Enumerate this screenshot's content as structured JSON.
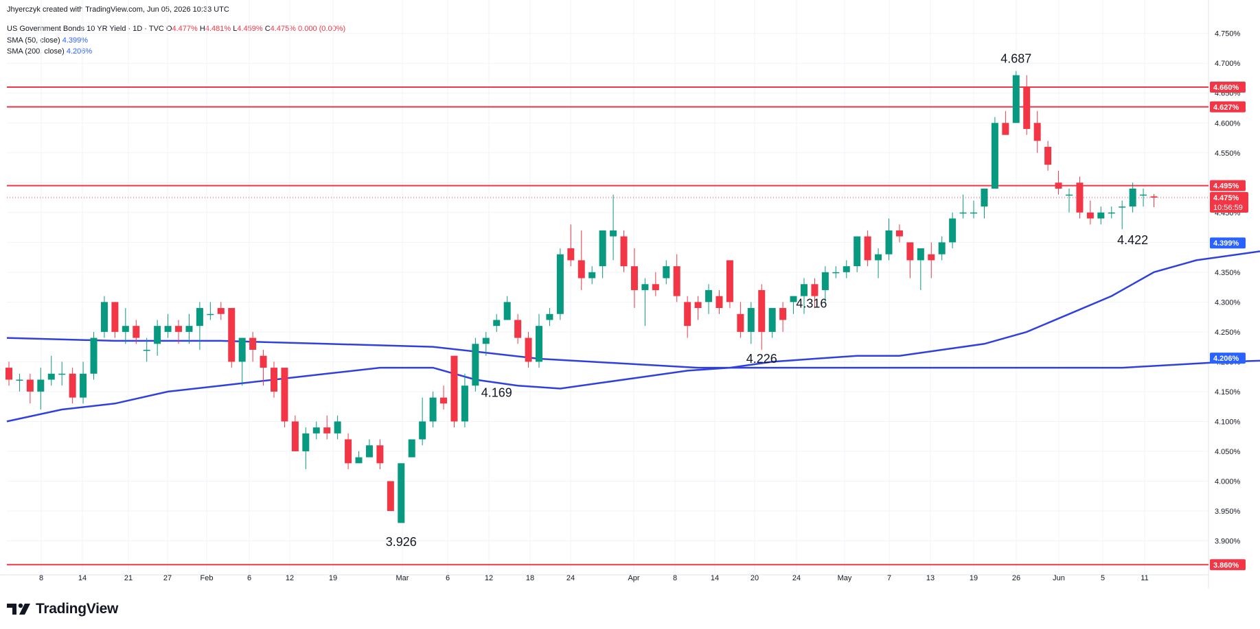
{
  "credit": "Jhyerczyk created with TradingView.com, Jun 05, 2026 10:33 UTC",
  "legend": {
    "symbol_text": "US Government Bonds 10 YR Yield · 1D · TVC",
    "o_label": "O",
    "o_value": "4.477%",
    "h_label": "H",
    "h_value": "4.481%",
    "l_label": "L",
    "l_value": "4.459%",
    "c_label": "C",
    "c_value": "4.475%",
    "change": "0.000 (0.00%)",
    "sma50_label": "SMA (50, close)",
    "sma50_value": "4.399%",
    "sma200_label": "SMA (200, close)",
    "sma200_value": "4.206%"
  },
  "branding": {
    "logo_text": "TradingView"
  },
  "colors": {
    "up": "#089981",
    "down": "#f23645",
    "sma": "#2f3fe0",
    "sma_badge": "#2962ff",
    "level": "#f23645",
    "grid": "#f0f3fa"
  },
  "chart_data": {
    "type": "candlestick",
    "yaxis": {
      "min": 3.85,
      "max": 4.76,
      "ticks": [
        "4.750%",
        "4.700%",
        "4.650%",
        "4.600%",
        "4.550%",
        "4.500%",
        "4.450%",
        "4.400%",
        "4.350%",
        "4.300%",
        "4.250%",
        "4.200%",
        "4.150%",
        "4.100%",
        "4.050%",
        "4.000%",
        "3.950%",
        "3.900%"
      ],
      "position": "right"
    },
    "xaxis": {
      "ticks": [
        "8",
        "14",
        "21",
        "27",
        "Feb",
        "6",
        "12",
        "19",
        "Mar",
        "6",
        "12",
        "18",
        "24",
        "Apr",
        "8",
        "14",
        "20",
        "24",
        "May",
        "7",
        "13",
        "19",
        "26",
        "Jun",
        "5",
        "11"
      ]
    },
    "grid": true,
    "levels": [
      {
        "value": 4.66,
        "label": "4.660%"
      },
      {
        "value": 4.627,
        "label": "4.627%"
      },
      {
        "value": 4.495,
        "label": "4.495%"
      },
      {
        "value": 3.86,
        "label": "3.860%"
      }
    ],
    "last_price": {
      "value": 4.475,
      "label": "4.475%",
      "countdown": "10:56:59"
    },
    "sma50": {
      "last": 4.399,
      "label": "4.399%",
      "points": [
        [
          0,
          4.1
        ],
        [
          5,
          4.12
        ],
        [
          10,
          4.13
        ],
        [
          15,
          4.15
        ],
        [
          20,
          4.16
        ],
        [
          25,
          4.17
        ],
        [
          30,
          4.18
        ],
        [
          35,
          4.19
        ],
        [
          40,
          4.19
        ],
        [
          44,
          4.17
        ],
        [
          48,
          4.16
        ],
        [
          52,
          4.155
        ],
        [
          56,
          4.165
        ],
        [
          60,
          4.175
        ],
        [
          64,
          4.185
        ],
        [
          68,
          4.19
        ],
        [
          72,
          4.2
        ],
        [
          76,
          4.205
        ],
        [
          80,
          4.21
        ],
        [
          84,
          4.21
        ],
        [
          88,
          4.22
        ],
        [
          92,
          4.23
        ],
        [
          96,
          4.25
        ],
        [
          100,
          4.28
        ],
        [
          104,
          4.31
        ],
        [
          108,
          4.35
        ],
        [
          112,
          4.37
        ],
        [
          116,
          4.38
        ],
        [
          120,
          4.39
        ],
        [
          123,
          4.399
        ]
      ]
    },
    "sma200": {
      "last": 4.206,
      "label": "4.206%",
      "points": [
        [
          0,
          4.24
        ],
        [
          10,
          4.235
        ],
        [
          20,
          4.235
        ],
        [
          30,
          4.23
        ],
        [
          40,
          4.225
        ],
        [
          45,
          4.215
        ],
        [
          50,
          4.205
        ],
        [
          55,
          4.2
        ],
        [
          60,
          4.195
        ],
        [
          65,
          4.19
        ],
        [
          70,
          4.19
        ],
        [
          80,
          4.19
        ],
        [
          90,
          4.19
        ],
        [
          100,
          4.19
        ],
        [
          105,
          4.19
        ],
        [
          110,
          4.195
        ],
        [
          115,
          4.2
        ],
        [
          120,
          4.203
        ],
        [
          123,
          4.206
        ]
      ]
    },
    "candles": [
      [
        4.19,
        4.17,
        4.2,
        4.16
      ],
      [
        4.17,
        4.17,
        4.18,
        4.15
      ],
      [
        4.17,
        4.15,
        4.18,
        4.13
      ],
      [
        4.15,
        4.17,
        4.19,
        4.12
      ],
      [
        4.17,
        4.18,
        4.21,
        4.16
      ],
      [
        4.18,
        4.18,
        4.2,
        4.16
      ],
      [
        4.18,
        4.14,
        4.19,
        4.13
      ],
      [
        4.14,
        4.18,
        4.2,
        4.13
      ],
      [
        4.18,
        4.24,
        4.25,
        4.17
      ],
      [
        4.25,
        4.3,
        4.31,
        4.24
      ],
      [
        4.3,
        4.25,
        4.3,
        4.24
      ],
      [
        4.25,
        4.26,
        4.29,
        4.23
      ],
      [
        4.26,
        4.24,
        4.27,
        4.23
      ],
      [
        4.22,
        4.22,
        4.24,
        4.2
      ],
      [
        4.23,
        4.26,
        4.27,
        4.21
      ],
      [
        4.25,
        4.26,
        4.28,
        4.24
      ],
      [
        4.26,
        4.25,
        4.27,
        4.23
      ],
      [
        4.25,
        4.26,
        4.28,
        4.23
      ],
      [
        4.26,
        4.29,
        4.3,
        4.22
      ],
      [
        4.28,
        4.28,
        4.3,
        4.27
      ],
      [
        4.29,
        4.28,
        4.3,
        4.27
      ],
      [
        4.29,
        4.2,
        4.29,
        4.19
      ],
      [
        4.2,
        4.24,
        4.24,
        4.16
      ],
      [
        4.24,
        4.22,
        4.25,
        4.2
      ],
      [
        4.21,
        4.19,
        4.22,
        4.16
      ],
      [
        4.19,
        4.15,
        4.2,
        4.14
      ],
      [
        4.19,
        4.1,
        4.19,
        4.09
      ],
      [
        4.1,
        4.05,
        4.11,
        4.05
      ],
      [
        4.05,
        4.08,
        4.09,
        4.02
      ],
      [
        4.08,
        4.09,
        4.1,
        4.07
      ],
      [
        4.09,
        4.08,
        4.11,
        4.07
      ],
      [
        4.08,
        4.1,
        4.11,
        4.07
      ],
      [
        4.07,
        4.03,
        4.08,
        4.02
      ],
      [
        4.03,
        4.04,
        4.05,
        4.03
      ],
      [
        4.04,
        4.06,
        4.07,
        4.04
      ],
      [
        4.06,
        4.03,
        4.07,
        4.02
      ],
      [
        4.0,
        3.95,
        4.0,
        3.95
      ],
      [
        3.93,
        4.03,
        4.03,
        3.93
      ],
      [
        4.04,
        4.07,
        4.07,
        4.04
      ],
      [
        4.07,
        4.1,
        4.14,
        4.06
      ],
      [
        4.1,
        4.14,
        4.15,
        4.09
      ],
      [
        4.14,
        4.13,
        4.16,
        4.12
      ],
      [
        4.21,
        4.1,
        4.21,
        4.09
      ],
      [
        4.1,
        4.16,
        4.18,
        4.09
      ],
      [
        4.16,
        4.23,
        4.24,
        4.15
      ],
      [
        4.23,
        4.24,
        4.25,
        4.21
      ],
      [
        4.26,
        4.27,
        4.28,
        4.25
      ],
      [
        4.27,
        4.3,
        4.31,
        4.27
      ],
      [
        4.27,
        4.24,
        4.28,
        4.23
      ],
      [
        4.24,
        4.2,
        4.25,
        4.19
      ],
      [
        4.2,
        4.26,
        4.28,
        4.19
      ],
      [
        4.27,
        4.28,
        4.29,
        4.26
      ],
      [
        4.28,
        4.38,
        4.39,
        4.27
      ],
      [
        4.39,
        4.37,
        4.43,
        4.36
      ],
      [
        4.37,
        4.34,
        4.42,
        4.32
      ],
      [
        4.34,
        4.35,
        4.36,
        4.33
      ],
      [
        4.36,
        4.42,
        4.42,
        4.34
      ],
      [
        4.41,
        4.42,
        4.48,
        4.37
      ],
      [
        4.41,
        4.36,
        4.42,
        4.35
      ],
      [
        4.36,
        4.32,
        4.39,
        4.29
      ],
      [
        4.32,
        4.33,
        4.34,
        4.26
      ],
      [
        4.33,
        4.32,
        4.35,
        4.31
      ],
      [
        4.34,
        4.36,
        4.37,
        4.33
      ],
      [
        4.36,
        4.31,
        4.38,
        4.3
      ],
      [
        4.3,
        4.26,
        4.31,
        4.24
      ],
      [
        4.3,
        4.29,
        4.31,
        4.27
      ],
      [
        4.3,
        4.32,
        4.33,
        4.28
      ],
      [
        4.31,
        4.29,
        4.32,
        4.28
      ],
      [
        4.37,
        4.3,
        4.37,
        4.29
      ],
      [
        4.28,
        4.25,
        4.3,
        4.24
      ],
      [
        4.25,
        4.29,
        4.3,
        4.23
      ],
      [
        4.32,
        4.25,
        4.33,
        4.22
      ],
      [
        4.25,
        4.29,
        4.29,
        4.24
      ],
      [
        4.29,
        4.27,
        4.3,
        4.25
      ],
      [
        4.3,
        4.31,
        4.31,
        4.28
      ],
      [
        4.31,
        4.33,
        4.34,
        4.28
      ],
      [
        4.33,
        4.31,
        4.34,
        4.29
      ],
      [
        4.32,
        4.35,
        4.36,
        4.3
      ],
      [
        4.35,
        4.35,
        4.36,
        4.34
      ],
      [
        4.35,
        4.36,
        4.37,
        4.34
      ],
      [
        4.36,
        4.41,
        4.41,
        4.35
      ],
      [
        4.41,
        4.37,
        4.42,
        4.36
      ],
      [
        4.37,
        4.38,
        4.39,
        4.34
      ],
      [
        4.38,
        4.42,
        4.44,
        4.37
      ],
      [
        4.42,
        4.41,
        4.43,
        4.4
      ],
      [
        4.4,
        4.37,
        4.4,
        4.34
      ],
      [
        4.37,
        4.39,
        4.39,
        4.32
      ],
      [
        4.38,
        4.37,
        4.4,
        4.34
      ],
      [
        4.38,
        4.4,
        4.41,
        4.37
      ],
      [
        4.4,
        4.44,
        4.45,
        4.39
      ],
      [
        4.45,
        4.45,
        4.48,
        4.44
      ],
      [
        4.45,
        4.45,
        4.47,
        4.44
      ],
      [
        4.46,
        4.49,
        4.49,
        4.44
      ],
      [
        4.49,
        4.6,
        4.61,
        4.49
      ],
      [
        4.6,
        4.58,
        4.62,
        4.58
      ],
      [
        4.6,
        4.68,
        4.687,
        4.6
      ],
      [
        4.66,
        4.59,
        4.68,
        4.58
      ],
      [
        4.6,
        4.57,
        4.62,
        4.55
      ],
      [
        4.56,
        4.53,
        4.57,
        4.52
      ],
      [
        4.5,
        4.49,
        4.52,
        4.48
      ],
      [
        4.48,
        4.48,
        4.49,
        4.45
      ],
      [
        4.5,
        4.45,
        4.51,
        4.44
      ],
      [
        4.45,
        4.44,
        4.47,
        4.43
      ],
      [
        4.44,
        4.45,
        4.46,
        4.43
      ],
      [
        4.45,
        4.45,
        4.46,
        4.44
      ],
      [
        4.46,
        4.46,
        4.47,
        4.422
      ],
      [
        4.46,
        4.49,
        4.5,
        4.45
      ],
      [
        4.48,
        4.48,
        4.49,
        4.46
      ],
      [
        4.477,
        4.475,
        4.481,
        4.459
      ]
    ],
    "annotations": [
      {
        "label": "3.926",
        "value": 3.926
      },
      {
        "label": "4.169",
        "value": 4.169
      },
      {
        "label": "4.226",
        "value": 4.226
      },
      {
        "label": "4.316",
        "value": 4.316
      },
      {
        "label": "4.687",
        "value": 4.687
      },
      {
        "label": "4.422",
        "value": 4.422
      }
    ]
  }
}
